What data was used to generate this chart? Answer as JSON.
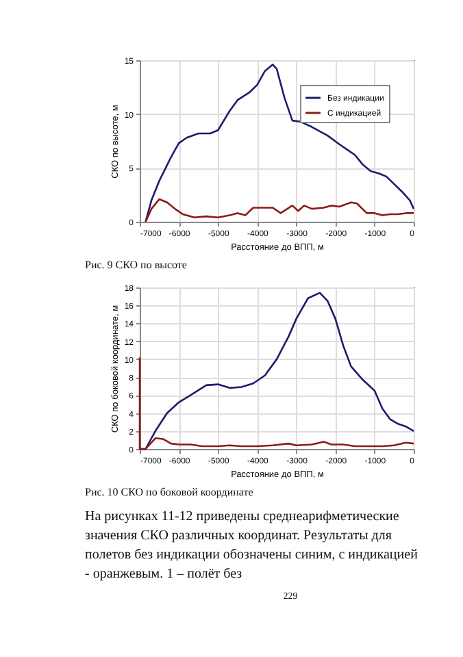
{
  "chart_data": [
    {
      "type": "line",
      "xlabel": "Расстояние до ВПП, м",
      "ylabel": "СКО по высоте, м",
      "xlim": [
        -7000,
        0
      ],
      "xticks": [
        -7000,
        -6000,
        -5000,
        -4000,
        -3000,
        -2000,
        -1000,
        0
      ],
      "ylim": [
        0,
        15
      ],
      "yticks": [
        0,
        5,
        10,
        15
      ],
      "grid": true,
      "legend": "top right",
      "annotations": [
        "Рис. 9 СКО по высоте"
      ],
      "series": [
        {
          "name": "Без индикации",
          "color": "#1c1c6e",
          "x": [
            -6850,
            -6700,
            -6500,
            -6200,
            -6000,
            -5800,
            -5500,
            -5200,
            -5000,
            -4700,
            -4500,
            -4200,
            -4000,
            -3800,
            -3600,
            -3500,
            -3300,
            -3100,
            -2900,
            -2600,
            -2200,
            -1900,
            -1700,
            -1500,
            -1300,
            -1100,
            -900,
            -700,
            -500,
            -300,
            -100,
            0
          ],
          "values": [
            0,
            2,
            3.8,
            6,
            7.3,
            7.8,
            8.2,
            8.2,
            8.5,
            10.3,
            11.3,
            12,
            12.7,
            14,
            14.6,
            14.2,
            11.5,
            9.4,
            9.3,
            8.8,
            8,
            7.2,
            6.7,
            6.2,
            5.3,
            4.7,
            4.5,
            4.2,
            3.5,
            2.8,
            2,
            1.2
          ]
        },
        {
          "name": "С индикацией",
          "color": "#8b1a1a",
          "x": [
            -6850,
            -6700,
            -6500,
            -6300,
            -6100,
            -5900,
            -5600,
            -5300,
            -5000,
            -4700,
            -4500,
            -4300,
            -4100,
            -3900,
            -3600,
            -3400,
            -3100,
            -2950,
            -2800,
            -2600,
            -2300,
            -2100,
            -1900,
            -1600,
            -1450,
            -1200,
            -1000,
            -800,
            -600,
            -400,
            -200,
            0
          ],
          "values": [
            0,
            1.2,
            2.1,
            1.8,
            1.2,
            0.7,
            0.4,
            0.5,
            0.4,
            0.6,
            0.8,
            0.6,
            1.3,
            1.3,
            1.3,
            0.8,
            1.5,
            1.0,
            1.5,
            1.2,
            1.3,
            1.5,
            1.4,
            1.8,
            1.7,
            0.8,
            0.8,
            0.6,
            0.7,
            0.7,
            0.8,
            0.8
          ]
        }
      ]
    },
    {
      "type": "line",
      "xlabel": "Расстояние до ВПП, м",
      "ylabel": "СКО по боковой координате, м",
      "xlim": [
        -7000,
        0
      ],
      "xticks": [
        -7000,
        -6000,
        -5000,
        -4000,
        -3000,
        -2000,
        -1000,
        0
      ],
      "ylim": [
        0,
        18
      ],
      "yticks": [
        0,
        2,
        4,
        6,
        8,
        10,
        12,
        14,
        16,
        18
      ],
      "grid": true,
      "legend": "top right",
      "annotations": [
        "Рис. 10 СКО по боковой координате",
        "На рисунках 11-12 приведены среднеарифметические значения СКО различных координат. Результаты для полетов без индикации обозначены синим, с индикацией - оранжевым. 1 – полёт без",
        "229"
      ],
      "series": [
        {
          "name": "Без индикации",
          "color": "#1c1c6e",
          "x": [
            -7000,
            -6850,
            -6600,
            -6300,
            -6000,
            -5700,
            -5300,
            -5000,
            -4700,
            -4400,
            -4100,
            -3800,
            -3500,
            -3200,
            -3000,
            -2700,
            -2400,
            -2200,
            -2000,
            -1800,
            -1600,
            -1300,
            -1000,
            -800,
            -600,
            -400,
            -200,
            0
          ],
          "values": [
            0,
            0,
            2,
            4,
            5.2,
            6,
            7.1,
            7.2,
            6.8,
            6.9,
            7.3,
            8.2,
            10,
            12.5,
            14.5,
            16.8,
            17.4,
            16.5,
            14.5,
            11.5,
            9.2,
            7.7,
            6.5,
            4.5,
            3.3,
            2.8,
            2.5,
            2
          ]
        },
        {
          "name": "С индикацией",
          "color": "#8b1a1a",
          "x": [
            -7000,
            -7000,
            -6850,
            -6600,
            -6400,
            -6200,
            -6000,
            -5700,
            -5400,
            -5000,
            -4700,
            -4400,
            -4000,
            -3600,
            -3200,
            -3000,
            -2600,
            -2300,
            -2100,
            -1800,
            -1500,
            -1200,
            -800,
            -500,
            -200,
            0
          ],
          "values": [
            10.2,
            0,
            0,
            1.2,
            1.1,
            0.6,
            0.5,
            0.5,
            0.3,
            0.3,
            0.4,
            0.3,
            0.3,
            0.4,
            0.6,
            0.4,
            0.5,
            0.8,
            0.5,
            0.5,
            0.3,
            0.3,
            0.3,
            0.4,
            0.7,
            0.6
          ]
        }
      ]
    }
  ]
}
